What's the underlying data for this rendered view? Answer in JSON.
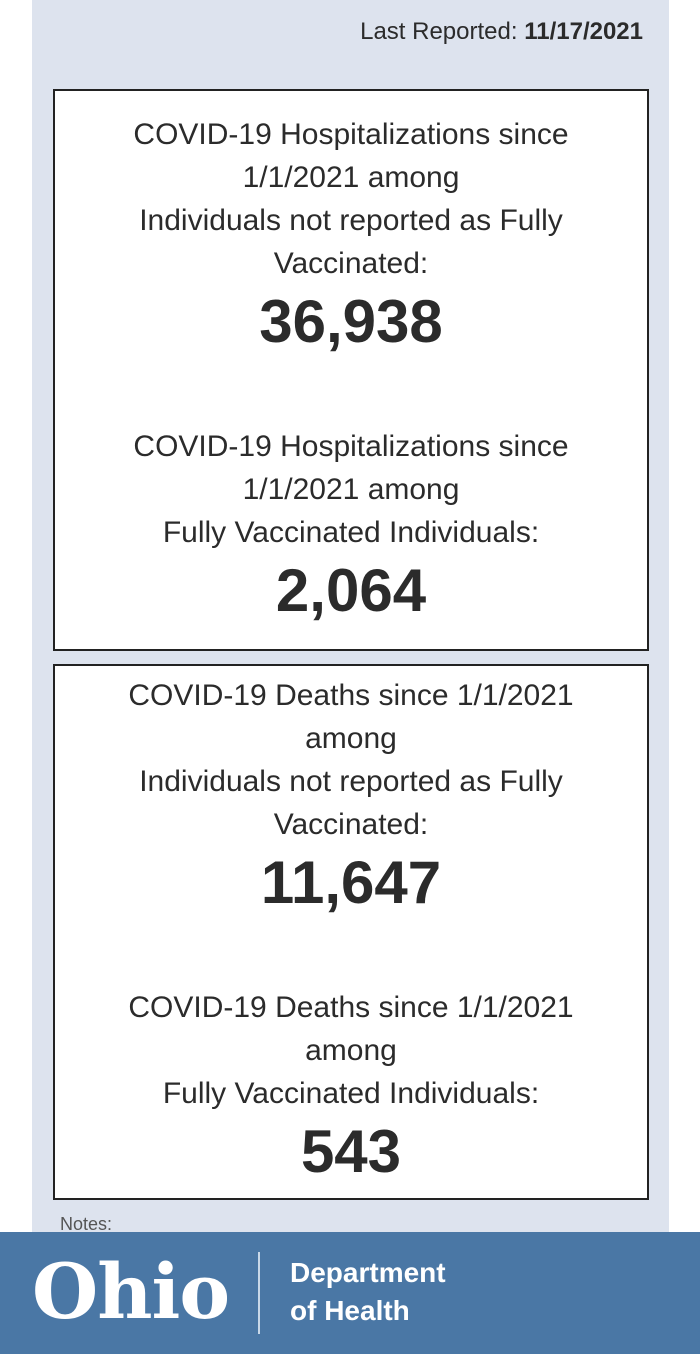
{
  "header": {
    "last_reported_label": "Last Reported:",
    "last_reported_date": "11/17/2021"
  },
  "hospitalizations": {
    "not_fully_vaccinated": {
      "label_lines": [
        "COVID-19 Hospitalizations since",
        "1/1/2021 among",
        "Individuals not reported as Fully",
        "Vaccinated:"
      ],
      "value": "36,938"
    },
    "fully_vaccinated": {
      "label_lines": [
        "COVID-19 Hospitalizations since",
        "1/1/2021 among",
        "Fully Vaccinated Individuals:"
      ],
      "value": "2,064"
    }
  },
  "deaths": {
    "not_fully_vaccinated": {
      "label_lines": [
        "COVID-19 Deaths since 1/1/2021",
        "among",
        "Individuals not reported as Fully",
        "Vaccinated:"
      ],
      "value": "11,647"
    },
    "fully_vaccinated": {
      "label_lines": [
        "COVID-19 Deaths since 1/1/2021",
        "among",
        "Fully Vaccinated Individuals:"
      ],
      "value": "543"
    }
  },
  "notes_label": "Notes:",
  "footer": {
    "logo_text": "Ohio",
    "dept_line1": "Department",
    "dept_line2": "of Health"
  },
  "colors": {
    "panel_bg": "#dde3ee",
    "footer_bg": "#4a77a5",
    "text": "#2b2b2b"
  }
}
